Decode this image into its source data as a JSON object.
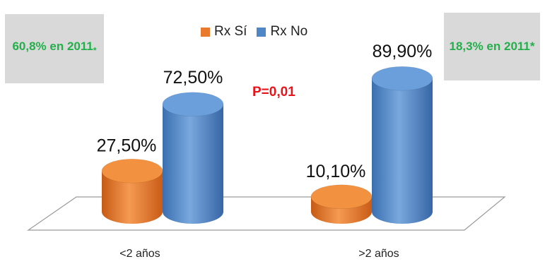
{
  "chart_data": {
    "type": "bar",
    "style": "3d-cylinder",
    "categories": [
      "<2 años",
      ">2 años"
    ],
    "series": [
      {
        "name": "Rx Sí",
        "color": "#e97a2b",
        "values": [
          27.5,
          10.1
        ],
        "labels": [
          "27,50%",
          "10,10%"
        ]
      },
      {
        "name": "Rx No",
        "color": "#4f86c6",
        "values": [
          72.5,
          89.9
        ],
        "labels": [
          "72,50%",
          "89,90%"
        ]
      }
    ],
    "ylim": [
      0,
      100
    ],
    "legend": "top-center",
    "annotations": {
      "left_note": {
        "text": "60,8% en 2011",
        "mark": "*"
      },
      "right_note": {
        "text": "18,3% en 2011*"
      },
      "pvalue": "P=0,01"
    }
  }
}
